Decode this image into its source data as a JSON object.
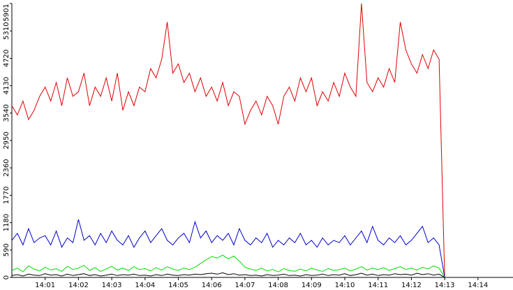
{
  "chart_data": {
    "type": "line",
    "categories": [
      null,
      null,
      null,
      null,
      null,
      null,
      "14:01",
      null,
      null,
      null,
      null,
      null,
      "14:02",
      null,
      null,
      null,
      null,
      null,
      "14:03",
      null,
      null,
      null,
      null,
      null,
      "14:04",
      null,
      null,
      null,
      null,
      null,
      "14:05",
      null,
      null,
      null,
      null,
      null,
      "14:06",
      null,
      null,
      null,
      null,
      null,
      "14:07",
      null,
      null,
      null,
      null,
      null,
      "14:08",
      null,
      null,
      null,
      null,
      null,
      "14:09",
      null,
      null,
      null,
      null,
      null,
      "14:10",
      null,
      null,
      null,
      null,
      null,
      "14:11",
      null,
      null,
      null,
      null,
      null,
      "14:12",
      null,
      null,
      null,
      null,
      null,
      "14:13",
      null,
      null,
      null,
      null,
      null,
      "14:14",
      null,
      null,
      null,
      null,
      null,
      null
    ],
    "series": [
      {
        "color": "#e00000",
        "values": [
          3700,
          3500,
          3800,
          3400,
          3600,
          3900,
          4100,
          3800,
          4200,
          3700,
          4300,
          3900,
          4000,
          4400,
          3700,
          4100,
          3900,
          4300,
          3800,
          4400,
          3600,
          4000,
          3700,
          4100,
          4000,
          4500,
          4300,
          4700,
          5500,
          4400,
          4600,
          4200,
          4400,
          4000,
          4300,
          3900,
          4100,
          3800,
          4200,
          3700,
          4000,
          3900,
          3300,
          3600,
          3800,
          3500,
          3900,
          3700,
          3300,
          3900,
          4100,
          3800,
          4300,
          4000,
          4300,
          3700,
          4000,
          3800,
          4200,
          3900,
          4400,
          4100,
          3900,
          5901,
          4200,
          4000,
          4300,
          4100,
          4500,
          4200,
          5500,
          4900,
          4600,
          4400,
          4800,
          4500,
          4900,
          4700,
          0,
          null,
          null,
          null,
          null,
          null,
          null,
          null,
          null,
          null,
          null,
          null,
          null
        ]
      },
      {
        "color": "#0000cc",
        "values": [
          800,
          950,
          700,
          1050,
          750,
          850,
          900,
          700,
          1000,
          650,
          850,
          750,
          1250,
          800,
          900,
          700,
          950,
          750,
          1000,
          800,
          700,
          900,
          650,
          850,
          1000,
          750,
          900,
          1050,
          800,
          700,
          850,
          950,
          750,
          1200,
          850,
          1000,
          750,
          900,
          800,
          950,
          700,
          1050,
          800,
          700,
          850,
          750,
          950,
          650,
          800,
          700,
          850,
          750,
          950,
          700,
          800,
          650,
          850,
          700,
          800,
          750,
          900,
          700,
          850,
          1000,
          750,
          1100,
          800,
          700,
          850,
          750,
          900,
          700,
          800,
          950,
          1100,
          750,
          850,
          700,
          0,
          null,
          null,
          null,
          null,
          null,
          null,
          null,
          null,
          null,
          null,
          null,
          null
        ]
      },
      {
        "color": "#00dd00",
        "values": [
          150,
          200,
          120,
          250,
          180,
          140,
          220,
          160,
          190,
          130,
          240,
          170,
          200,
          260,
          150,
          210,
          130,
          180,
          240,
          160,
          200,
          150,
          230,
          170,
          190,
          140,
          210,
          160,
          230,
          180,
          150,
          200,
          170,
          220,
          300,
          380,
          450,
          420,
          480,
          400,
          460,
          350,
          220,
          180,
          150,
          200,
          140,
          170,
          120,
          190,
          150,
          130,
          180,
          140,
          200,
          160,
          130,
          190,
          150,
          170,
          200,
          140,
          180,
          230,
          160,
          200,
          170,
          210,
          150,
          190,
          230,
          170,
          200,
          160,
          220,
          180,
          250,
          200,
          0,
          null,
          null,
          null,
          null,
          null,
          null,
          null,
          null,
          null,
          null,
          null,
          null
        ]
      },
      {
        "color": "#000000",
        "values": [
          40,
          60,
          30,
          70,
          50,
          40,
          80,
          50,
          60,
          30,
          70,
          40,
          60,
          80,
          40,
          60,
          30,
          50,
          70,
          40,
          60,
          50,
          70,
          40,
          50,
          30,
          60,
          40,
          70,
          50,
          40,
          60,
          50,
          70,
          60,
          80,
          90,
          70,
          100,
          60,
          80,
          50,
          60,
          40,
          50,
          30,
          60,
          40,
          50,
          70,
          40,
          50,
          30,
          60,
          40,
          50,
          70,
          40,
          60,
          50,
          80,
          40,
          60,
          90,
          50,
          70,
          40,
          60,
          50,
          80,
          60,
          70,
          50,
          90,
          60,
          80,
          50,
          70,
          0,
          null,
          null,
          null,
          null,
          null,
          null,
          null,
          null,
          null,
          null,
          null,
          null
        ]
      }
    ],
    "ylim": [
      0,
      5901
    ],
    "yticks": [
      0,
      590,
      1180,
      1770,
      2360,
      2950,
      3540,
      4130,
      4720,
      5310,
      5901
    ]
  }
}
